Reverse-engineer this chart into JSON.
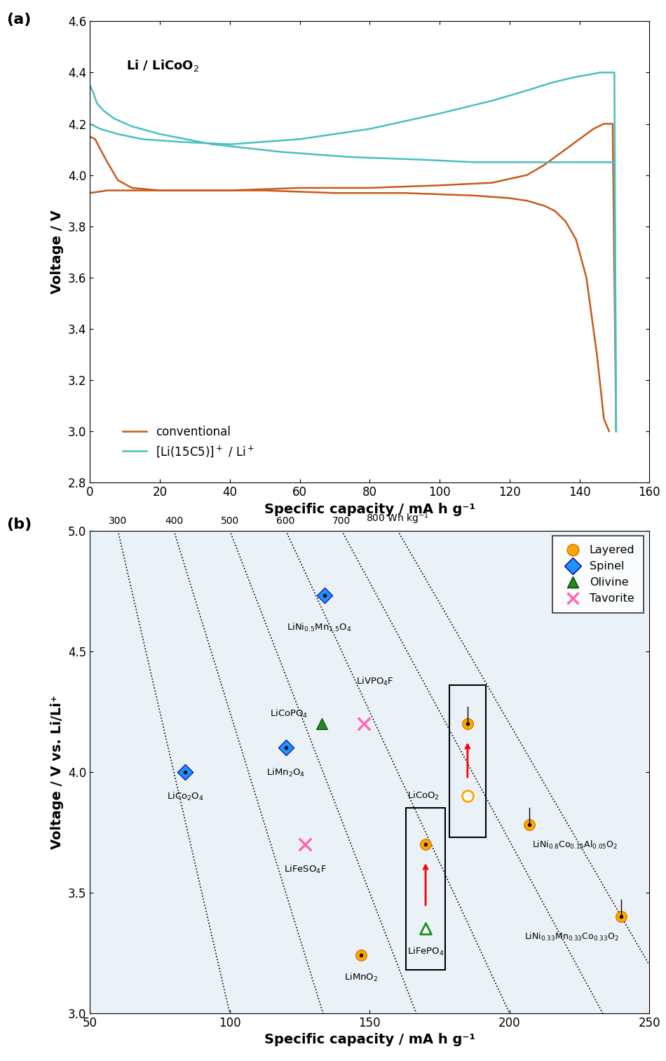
{
  "panel_a": {
    "xlabel": "Specific capacity / mA h g⁻¹",
    "ylabel": "Voltage / V",
    "xlim": [
      0,
      160
    ],
    "ylim": [
      2.8,
      4.6
    ],
    "xticks": [
      0,
      20,
      40,
      60,
      80,
      100,
      120,
      140,
      160
    ],
    "yticks": [
      2.8,
      3.0,
      3.2,
      3.4,
      3.6,
      3.8,
      4.0,
      4.2,
      4.4,
      4.6
    ],
    "conv_color": "#C85A1A",
    "li15c5_color": "#4BBFBF"
  },
  "panel_b": {
    "xlabel": "Specific capacity / mA h g⁻¹",
    "ylabel": "Voltage / V vs. Li/Li⁺",
    "xlim": [
      50,
      250
    ],
    "ylim": [
      3.0,
      5.0
    ],
    "xticks": [
      50,
      100,
      150,
      200,
      250
    ],
    "yticks": [
      3.0,
      3.5,
      4.0,
      4.5,
      5.0
    ],
    "bg_color": "#EAF2F8"
  }
}
